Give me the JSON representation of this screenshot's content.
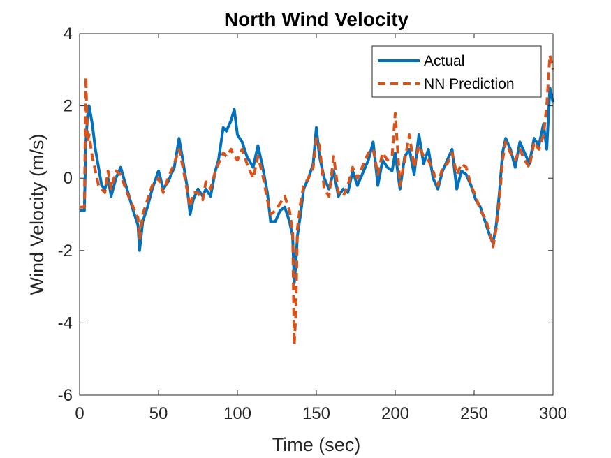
{
  "chart_data": {
    "type": "line",
    "title": "North Wind Velocity",
    "xlabel": "Time (sec)",
    "ylabel": "Wind Velocity (m/s)",
    "xlim": [
      0,
      300
    ],
    "ylim": [
      -6,
      4
    ],
    "xticks": [
      "0",
      "50",
      "100",
      "150",
      "200",
      "250",
      "300"
    ],
    "yticks": [
      "-6",
      "-4",
      "-2",
      "0",
      "2",
      "4"
    ],
    "grid": false,
    "legend_position": "top-right",
    "series": [
      {
        "name": "Actual",
        "color": "#0072BD",
        "style": "solid",
        "x": [
          0,
          3,
          4,
          5,
          6,
          8,
          10,
          12,
          14,
          16,
          18,
          20,
          23,
          26,
          30,
          34,
          37,
          38,
          40,
          43,
          46,
          50,
          53,
          56,
          60,
          63,
          65,
          68,
          70,
          72,
          75,
          78,
          80,
          83,
          86,
          88,
          91,
          93,
          96,
          98,
          100,
          103,
          106,
          110,
          113,
          116,
          119,
          121,
          124,
          127,
          130,
          133,
          135,
          136,
          137,
          138,
          140,
          142,
          145,
          148,
          150,
          152,
          155,
          158,
          161,
          164,
          167,
          170,
          173,
          176,
          180,
          183,
          186,
          189,
          192,
          195,
          198,
          200,
          203,
          206,
          209,
          212,
          215,
          218,
          221,
          224,
          227,
          230,
          233,
          236,
          239,
          242,
          245,
          248,
          251,
          254,
          257,
          260,
          262,
          264,
          266,
          268,
          270,
          273,
          276,
          279,
          282,
          285,
          288,
          291,
          294,
          296,
          298,
          300
        ],
        "y": [
          -0.9,
          -0.9,
          1.0,
          1.7,
          2.0,
          1.5,
          0.8,
          0.3,
          -0.2,
          -0.3,
          0.0,
          -0.5,
          0.0,
          0.3,
          -0.3,
          -0.9,
          -1.3,
          -2.0,
          -1.2,
          -0.8,
          -0.3,
          0.2,
          -0.3,
          -0.1,
          0.3,
          1.1,
          0.6,
          -0.2,
          -1.0,
          -0.6,
          -0.3,
          -0.5,
          -0.3,
          -0.5,
          0.2,
          0.5,
          1.4,
          1.3,
          1.6,
          1.9,
          1.2,
          1.0,
          0.6,
          0.3,
          0.9,
          0.3,
          -0.4,
          -1.2,
          -1.2,
          -0.9,
          -0.8,
          -1.2,
          -1.6,
          -2.9,
          -2.4,
          -1.6,
          -1.0,
          -0.3,
          0.0,
          0.4,
          1.4,
          0.6,
          0.0,
          -0.3,
          0.2,
          -0.5,
          -0.3,
          -0.4,
          0.2,
          -0.2,
          0.2,
          0.5,
          1.0,
          -0.2,
          0.5,
          0.3,
          0.2,
          0.7,
          -0.3,
          0.6,
          0.8,
          0.1,
          1.2,
          0.4,
          0.8,
          0.0,
          -0.3,
          0.2,
          0.5,
          0.8,
          -0.3,
          0.2,
          0.1,
          -0.2,
          -0.6,
          -0.8,
          -1.2,
          -1.6,
          -1.8,
          -1.3,
          -0.4,
          0.7,
          1.1,
          0.8,
          0.3,
          1.0,
          0.7,
          0.4,
          1.1,
          0.9,
          1.5,
          0.8,
          2.5,
          2.1
        ]
      },
      {
        "name": "NN Prediction",
        "color": "#D95319",
        "style": "dashed",
        "x": [
          0,
          3,
          4,
          5,
          6,
          8,
          10,
          12,
          14,
          16,
          18,
          20,
          23,
          26,
          30,
          34,
          37,
          38,
          40,
          43,
          46,
          50,
          53,
          56,
          60,
          63,
          65,
          68,
          70,
          72,
          75,
          78,
          80,
          83,
          86,
          88,
          91,
          93,
          96,
          98,
          100,
          103,
          106,
          110,
          113,
          116,
          119,
          121,
          124,
          127,
          130,
          133,
          135,
          136,
          137,
          138,
          140,
          142,
          145,
          148,
          150,
          152,
          155,
          158,
          161,
          164,
          167,
          170,
          173,
          176,
          180,
          183,
          186,
          189,
          192,
          195,
          198,
          200,
          203,
          206,
          209,
          212,
          215,
          218,
          221,
          224,
          227,
          230,
          233,
          236,
          239,
          242,
          245,
          248,
          251,
          254,
          257,
          260,
          262,
          264,
          266,
          268,
          270,
          273,
          276,
          279,
          282,
          285,
          288,
          291,
          294,
          296,
          298,
          300
        ],
        "y": [
          -0.8,
          -0.8,
          2.8,
          1.0,
          1.2,
          0.6,
          0.2,
          -0.2,
          -0.3,
          -0.4,
          0.2,
          -0.3,
          0.2,
          0.1,
          -0.4,
          -0.8,
          -1.1,
          -1.7,
          -1.0,
          -0.6,
          -0.2,
          0.0,
          -0.4,
          0.0,
          0.4,
          0.8,
          0.4,
          -0.3,
          -0.8,
          -0.4,
          -0.4,
          -0.6,
          -0.1,
          -0.3,
          0.2,
          0.4,
          0.7,
          0.6,
          0.8,
          0.6,
          0.5,
          0.8,
          0.4,
          0.0,
          0.6,
          0.1,
          -0.6,
          -1.0,
          -0.9,
          -0.7,
          -0.5,
          -0.9,
          -1.5,
          -4.6,
          -3.8,
          -1.4,
          -0.7,
          -0.2,
          0.0,
          0.3,
          1.1,
          0.9,
          -0.3,
          -0.5,
          0.6,
          -0.4,
          -0.5,
          -0.2,
          0.3,
          0.0,
          0.4,
          0.7,
          0.8,
          0.1,
          0.7,
          0.5,
          0.6,
          1.8,
          -0.2,
          0.5,
          1.2,
          0.3,
          0.9,
          0.6,
          0.5,
          0.2,
          -0.2,
          0.3,
          0.4,
          0.7,
          0.1,
          0.4,
          0.3,
          -0.2,
          -0.5,
          -0.9,
          -1.1,
          -1.5,
          -1.9,
          -1.4,
          -0.6,
          0.5,
          1.0,
          0.7,
          0.5,
          0.8,
          0.5,
          0.3,
          1.0,
          0.8,
          1.2,
          2.0,
          3.4,
          3.0
        ]
      }
    ]
  }
}
